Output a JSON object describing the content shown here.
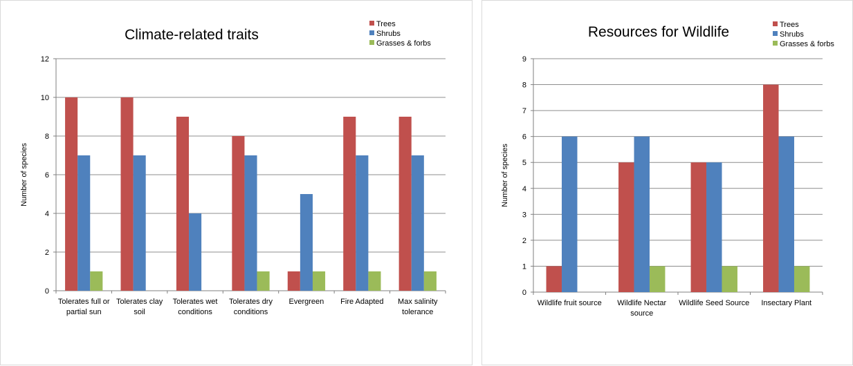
{
  "colors": {
    "trees": "#c0504d",
    "shrubs": "#4f81bd",
    "grasses": "#9bbb59",
    "grid": "#8c8c8c",
    "axis": "#7f7f7f"
  },
  "chart_data": [
    {
      "type": "bar",
      "title": "Climate-related traits",
      "xlabel": "",
      "ylabel": "Number of species",
      "ylim": [
        0,
        12
      ],
      "yticks": [
        0,
        2,
        4,
        6,
        8,
        10,
        12
      ],
      "grid": true,
      "legend_position": "top-right",
      "categories": [
        [
          "Tolerates full or",
          "partial sun"
        ],
        [
          "Tolerates clay",
          "soil"
        ],
        [
          "Tolerates wet",
          "conditions"
        ],
        [
          "Tolerates dry",
          "conditions"
        ],
        [
          "Evergreen"
        ],
        [
          "Fire Adapted"
        ],
        [
          "Max salinity",
          "tolerance"
        ]
      ],
      "series": [
        {
          "name": "Trees",
          "color": "#c0504d",
          "values": [
            10,
            10,
            9,
            8,
            1,
            9,
            9
          ]
        },
        {
          "name": "Shrubs",
          "color": "#4f81bd",
          "values": [
            7,
            7,
            4,
            7,
            5,
            7,
            7
          ]
        },
        {
          "name": "Grasses & forbs",
          "color": "#9bbb59",
          "values": [
            1,
            0,
            0,
            1,
            1,
            1,
            1
          ]
        }
      ]
    },
    {
      "type": "bar",
      "title": "Resources for Wildlife",
      "xlabel": "",
      "ylabel": "Number of species",
      "ylim": [
        0,
        9
      ],
      "yticks": [
        0,
        1,
        2,
        3,
        4,
        5,
        6,
        7,
        8,
        9
      ],
      "grid": true,
      "legend_position": "top-right",
      "categories": [
        [
          "Wildlife fruit source"
        ],
        [
          "Wildlife Nectar",
          "source"
        ],
        [
          "Wildlife Seed Source"
        ],
        [
          "Insectary Plant"
        ]
      ],
      "series": [
        {
          "name": "Trees",
          "color": "#c0504d",
          "values": [
            1,
            5,
            5,
            8
          ]
        },
        {
          "name": "Shrubs",
          "color": "#4f81bd",
          "values": [
            6,
            6,
            5,
            6
          ]
        },
        {
          "name": "Grasses & forbs",
          "color": "#9bbb59",
          "values": [
            0,
            1,
            1,
            1
          ]
        }
      ]
    }
  ]
}
